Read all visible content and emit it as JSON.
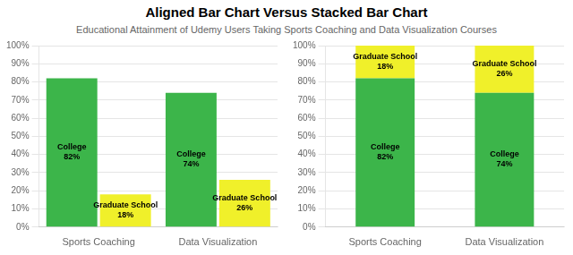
{
  "title": "Aligned Bar Chart Versus Stacked Bar Chart",
  "subtitle": "Educational Attainment of Udemy Users Taking Sports Coaching and Data Visualization Courses",
  "chart_data": [
    {
      "type": "bar",
      "categories": [
        "Sports Coaching",
        "Data Visualization"
      ],
      "series": [
        {
          "name": "College",
          "color": "#3cb54a",
          "values": [
            82,
            74
          ],
          "value_labels": [
            "82%",
            "74%"
          ]
        },
        {
          "name": "Graduate School",
          "color": "#f0f02a",
          "values": [
            18,
            26
          ],
          "value_labels": [
            "18%",
            "26%"
          ]
        }
      ],
      "ylim": [
        0,
        100
      ],
      "yticks": [
        {
          "value": 0,
          "label": "0%"
        },
        {
          "value": 10,
          "label": "10%"
        },
        {
          "value": 20,
          "label": "20%"
        },
        {
          "value": 30,
          "label": "30%"
        },
        {
          "value": 40,
          "label": "40%"
        },
        {
          "value": 50,
          "label": "50%"
        },
        {
          "value": 60,
          "label": "60%"
        },
        {
          "value": 70,
          "label": "70%"
        },
        {
          "value": 80,
          "label": "80%"
        },
        {
          "value": 90,
          "label": "90%"
        },
        {
          "value": 100,
          "label": "100%"
        }
      ],
      "grid": true,
      "data_labels": true
    },
    {
      "type": "bar",
      "categories": [
        "Sports Coaching",
        "Data Visualization"
      ],
      "series": [
        {
          "name": "College",
          "color": "#3cb54a",
          "values": [
            82,
            74
          ],
          "value_labels": [
            "82%",
            "74%"
          ]
        },
        {
          "name": "Graduate School",
          "color": "#f0f02a",
          "values": [
            18,
            26
          ],
          "value_labels": [
            "18%",
            "26%"
          ]
        }
      ],
      "ylim": [
        0,
        100
      ],
      "yticks": [
        {
          "value": 0,
          "label": "0%"
        },
        {
          "value": 10,
          "label": "10%"
        },
        {
          "value": 20,
          "label": "20%"
        },
        {
          "value": 30,
          "label": "30%"
        },
        {
          "value": 40,
          "label": "40%"
        },
        {
          "value": 50,
          "label": "50%"
        },
        {
          "value": 60,
          "label": "60%"
        },
        {
          "value": 70,
          "label": "70%"
        },
        {
          "value": 80,
          "label": "80%"
        },
        {
          "value": 90,
          "label": "90%"
        },
        {
          "value": 100,
          "label": "100%"
        }
      ],
      "grid": true,
      "stacked": true,
      "data_labels": true
    }
  ]
}
